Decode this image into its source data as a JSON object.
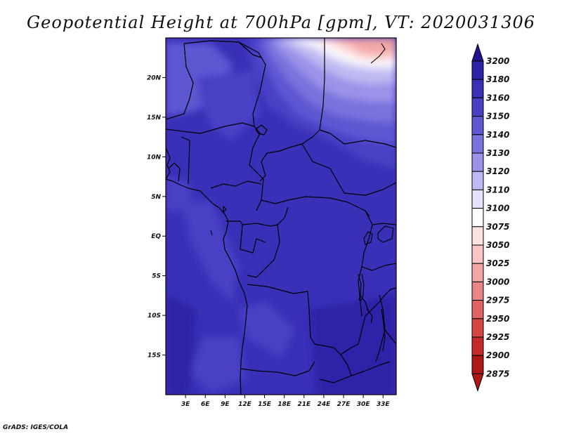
{
  "title": "Geopotential Height at 700hPa [gpm], VT: 2020031306",
  "credit": "GrADS: IGES/COLA",
  "map": {
    "lat_ticks": [
      "20N",
      "15N",
      "10N",
      "5N",
      "EQ",
      "5S",
      "10S",
      "15S"
    ],
    "lon_ticks": [
      "3E",
      "6E",
      "9E",
      "12E",
      "15E",
      "18E",
      "21E",
      "24E",
      "27E",
      "30E",
      "33E"
    ],
    "lat_range": [
      -20,
      25
    ],
    "lon_range": [
      0,
      35
    ]
  },
  "colorbar": {
    "levels": [
      "3200",
      "3180",
      "3160",
      "3150",
      "3140",
      "3130",
      "3120",
      "3110",
      "3100",
      "3075",
      "3050",
      "3025",
      "3000",
      "2975",
      "2950",
      "2925",
      "2900",
      "2875"
    ],
    "colors": [
      "#21138f",
      "#2e22a8",
      "#3a30b8",
      "#4a40c6",
      "#5f56d2",
      "#7a72de",
      "#9a93e8",
      "#bdb9f2",
      "#e4e2fa",
      "#ffffff",
      "#ffe2e2",
      "#f9c4c4",
      "#f2a6a6",
      "#e98585",
      "#e06464",
      "#d64444",
      "#c52a2a",
      "#b01818"
    ]
  }
}
